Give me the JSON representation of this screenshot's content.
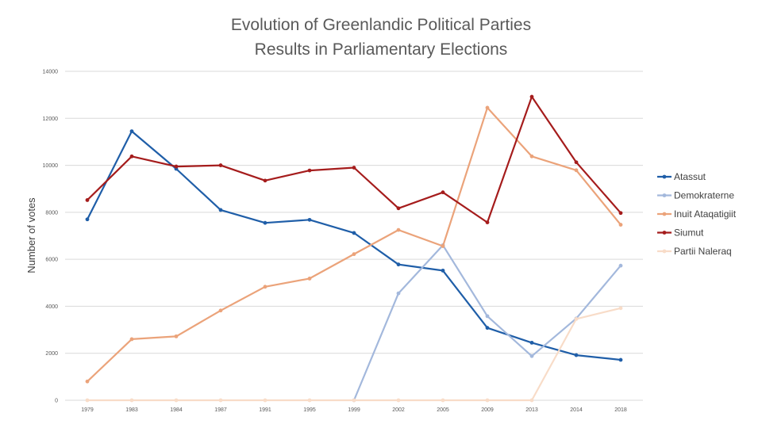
{
  "chart_data": {
    "type": "line",
    "title_line1": "Evolution of Greenlandic Political Parties",
    "title_line2": "Results in Parliamentary Elections",
    "ylabel": "Number of votes",
    "xlabel": "",
    "ylim": [
      0,
      14000
    ],
    "yticks": [
      0,
      2000,
      4000,
      6000,
      8000,
      10000,
      12000,
      14000
    ],
    "grid": true,
    "legend_position": "right",
    "categories": [
      "1979",
      "1983",
      "1984",
      "1987",
      "1991",
      "1995",
      "1999",
      "2002",
      "2005",
      "2009",
      "2013",
      "2014",
      "2018"
    ],
    "series": [
      {
        "name": "Atassut",
        "color": "#1f5ea8",
        "values": [
          7700,
          11450,
          9850,
          8100,
          7550,
          7680,
          7120,
          5780,
          5520,
          3080,
          2450,
          1920,
          1720
        ]
      },
      {
        "name": "Demokraterne",
        "color": "#a3b8dc",
        "values": [
          null,
          null,
          null,
          null,
          null,
          null,
          0,
          4550,
          6600,
          3580,
          1880,
          3480,
          5730
        ]
      },
      {
        "name": "Inuit Ataqatigiit",
        "color": "#eba37a",
        "values": [
          800,
          2600,
          2720,
          3820,
          4830,
          5180,
          6220,
          7250,
          6560,
          12450,
          10380,
          9790,
          7470
        ]
      },
      {
        "name": "Siumut",
        "color": "#a51c1c",
        "values": [
          8520,
          10380,
          9950,
          10000,
          9350,
          9780,
          9900,
          8170,
          8850,
          7570,
          12920,
          10130,
          7970
        ]
      },
      {
        "name": "Partii Naleraq",
        "color": "#f8dcc8",
        "values": [
          0,
          0,
          0,
          0,
          0,
          0,
          0,
          0,
          0,
          0,
          0,
          3460,
          3920
        ]
      }
    ]
  }
}
